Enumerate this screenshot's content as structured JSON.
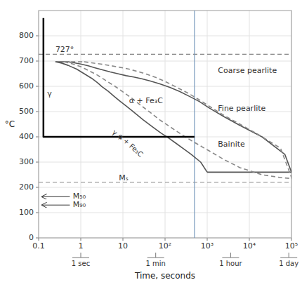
{
  "chart_data": {
    "type": "line",
    "xlabel": "Time, seconds",
    "ylabel": "°C",
    "log": "x",
    "grid": true,
    "xlim": [
      0.1,
      100000
    ],
    "ylim": [
      0,
      900
    ],
    "xticks": [
      0.1,
      1,
      10,
      {
        "value": 100,
        "label": "10²"
      },
      {
        "value": 1000,
        "label": "10³"
      },
      {
        "value": 10000,
        "label": "10⁴"
      },
      {
        "value": 100000,
        "label": "10⁵"
      }
    ],
    "yticks": [
      0,
      100,
      200,
      300,
      400,
      500,
      600,
      700,
      800
    ],
    "series": [
      {
        "color": "#555555",
        "line_style": "solid",
        "start": {
          "x": [
            0.25,
            0.35,
            0.5,
            0.8,
            1.2,
            1.8,
            2.5,
            3.2,
            4.5,
            6.0,
            8.0,
            12.0,
            18.0,
            30.0,
            50.0,
            80.0,
            120.0,
            180.0,
            280.0,
            420.0,
            700.0,
            1000.0
          ],
          "values": [
            697,
            692,
            683,
            668,
            650,
            632,
            614,
            598,
            580,
            562,
            545,
            522,
            498,
            468,
            440,
            415,
            396,
            375,
            352,
            330,
            300,
            260
          ]
        },
        "finish": {
          "x": [
            0.5,
            0.7,
            1.0,
            1.5,
            2.2,
            3.5,
            5.0,
            7.5,
            12.0,
            18.0,
            28.0,
            45.0,
            75.0,
            130.0,
            220.0,
            380.0,
            650.0,
            1100.0,
            2500.0,
            6000.0,
            20000.0,
            70000.0,
            100000.0
          ],
          "values": [
            697,
            693,
            688,
            681,
            673,
            664,
            657,
            650,
            642,
            637,
            630,
            621,
            610,
            596,
            580,
            560,
            540,
            515,
            480,
            445,
            400,
            330,
            260
          ]
        }
      },
      {
        "color": "#888888",
        "line_style": "dashed",
        "start": {
          "x": [
            0.4,
            0.6,
            1.0,
            1.5,
            2.5,
            4.0,
            6.5,
            10.0,
            16.0,
            26.0,
            45.0,
            75.0,
            120.0,
            190.0,
            300.0,
            500.0,
            800.0,
            1300.0,
            2500.0,
            6000.0,
            20000.0,
            60000.0,
            100000.0
          ],
          "values": [
            697,
            690,
            678,
            663,
            644,
            622,
            600,
            578,
            554,
            526,
            496,
            467,
            444,
            422,
            400,
            378,
            358,
            338,
            310,
            278,
            250,
            238,
            235
          ]
        },
        "finish": {
          "x": [
            1.2,
            1.8,
            3.0,
            5.0,
            8.0,
            14.0,
            22.0,
            38.0,
            65.0,
            110.0,
            190.0,
            350.0,
            600.0,
            1200.0,
            2500.0,
            6000.0,
            18000.0,
            55000.0,
            100000.0
          ],
          "values": [
            697,
            693,
            688,
            682,
            676,
            668,
            659,
            647,
            633,
            616,
            596,
            573,
            550,
            518,
            485,
            450,
            405,
            355,
            240
          ]
        }
      }
    ],
    "path": {
      "color": "#000000",
      "x": [
        0.13,
        0.13,
        500
      ],
      "values": [
        870,
        400,
        400
      ]
    },
    "hlines": [
      {
        "value": 727,
        "color": "#666666",
        "line_style": "dashed"
      },
      {
        "value": 220,
        "color": "#888888",
        "line_style": "dashed"
      }
    ],
    "vlines": [
      {
        "value": 500,
        "color": "#7799bb",
        "line_style": "solid"
      }
    ],
    "annotations": [
      {
        "text": "727°",
        "x": 0.25,
        "y": 735
      },
      {
        "text": "γ",
        "x": 0.16,
        "y": 560
      },
      {
        "text": "α + Fe₃C",
        "x": 14,
        "y": 533
      },
      {
        "text": "γ +",
        "x": 6.5,
        "y": 430
      },
      {
        "text": "α + Fe₃C",
        "x": 9,
        "y": 415
      },
      {
        "text": "Coarse pearlite",
        "x": 1800,
        "y": 660
      },
      {
        "text": "Fine pearlite",
        "x": 1800,
        "y": 510
      },
      {
        "text": "Bainite",
        "x": 1800,
        "y": 370
      },
      {
        "text": "Mₛ",
        "x": 8,
        "y": 228
      },
      {
        "text": "M₅₀",
        "x": 0.65,
        "y": 163,
        "arrow": {
          "from": 0.55,
          "to": 0.12
        }
      },
      {
        "text": "M₉₀",
        "x": 0.65,
        "y": 130,
        "arrow": {
          "from": 0.55,
          "to": 0.12
        }
      }
    ],
    "time_marks": [
      {
        "value": 1,
        "label": "1 sec"
      },
      {
        "value": 60,
        "label": "1 min"
      },
      {
        "value": 3600,
        "label": "1 hour"
      },
      {
        "value": 86400,
        "label": "1 day"
      }
    ]
  }
}
